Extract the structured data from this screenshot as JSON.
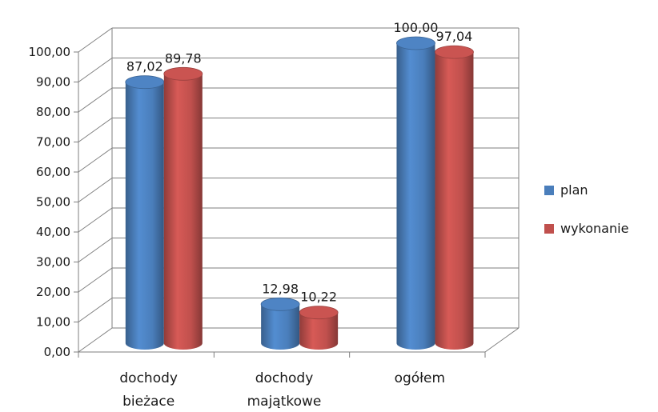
{
  "chart_data": {
    "type": "bar",
    "title": "",
    "xlabel": "",
    "ylabel": "",
    "categories": [
      [
        "dochody",
        "bieżace"
      ],
      [
        "dochody",
        "majątkowe"
      ],
      [
        "ogółem"
      ]
    ],
    "series": [
      {
        "name": "plan",
        "color": "#4a7ebb",
        "values": [
          87.02,
          12.98,
          100.0
        ],
        "labels": [
          "87,02",
          "12,98",
          "100,00"
        ]
      },
      {
        "name": "wykonanie",
        "color": "#c0504d",
        "values": [
          89.78,
          10.22,
          97.04
        ],
        "labels": [
          "89,78",
          "10,22",
          "97,04"
        ]
      }
    ],
    "ylim": [
      0,
      100
    ],
    "yticks": [
      "0,00",
      "10,00",
      "20,00",
      "30,00",
      "40,00",
      "50,00",
      "60,00",
      "70,00",
      "80,00",
      "90,00",
      "100,00"
    ],
    "grid": true,
    "legend": "right",
    "style": "3d-cylinder"
  }
}
